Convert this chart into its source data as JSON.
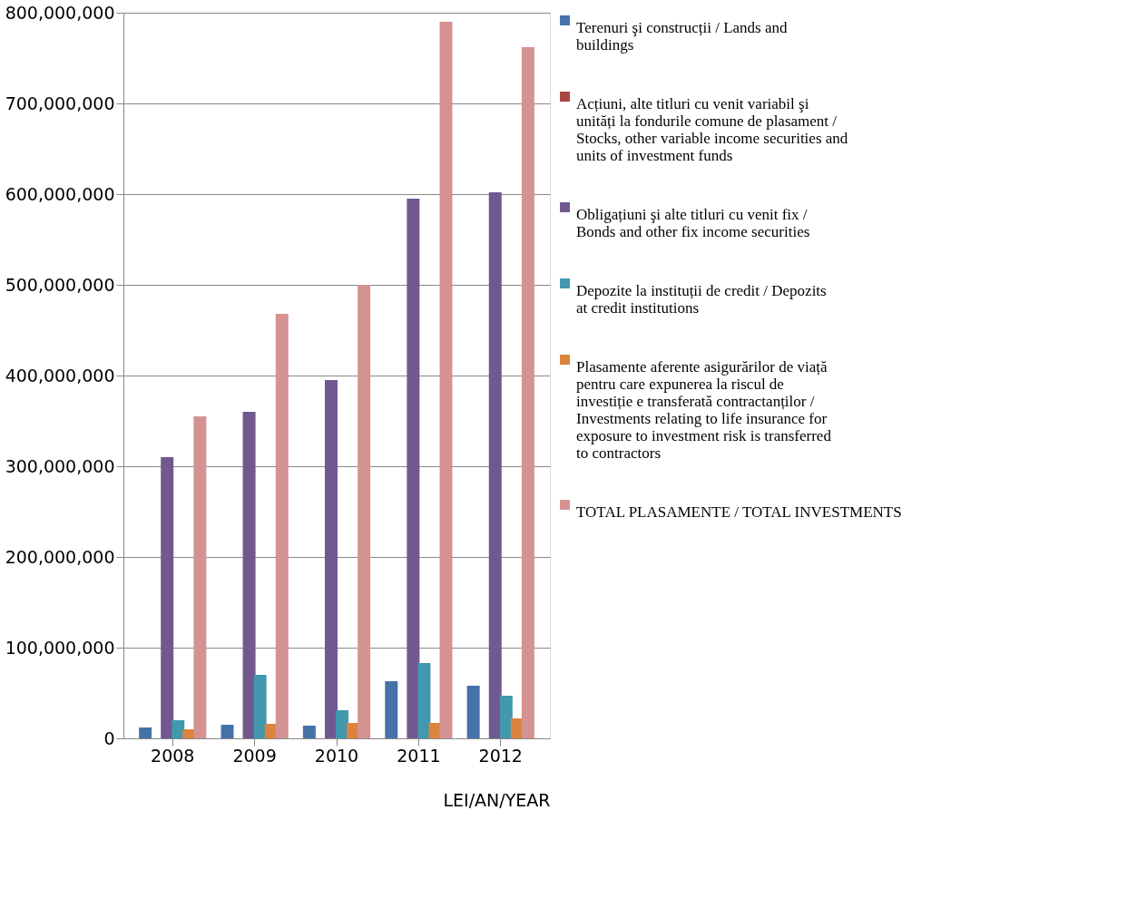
{
  "chart_data": {
    "type": "bar",
    "xlabel": "LEI/AN/YEAR",
    "categories": [
      "2008",
      "2009",
      "2010",
      "2011",
      "2012"
    ],
    "series": [
      {
        "name": "Terenuri şi construcții / Lands  and buildings",
        "color": "#4572a7",
        "values": [
          12000000,
          15000000,
          14000000,
          63000000,
          58000000
        ]
      },
      {
        "name": "Acțiuni, alte titluri cu venit variabil şi unități la fondurile comune de plasament / Stocks, other variable income securities and units of investment funds",
        "color": "#aa4643",
        "values": [
          null,
          null,
          null,
          null,
          null
        ]
      },
      {
        "name": "Obligațiuni şi alte titluri cu venit fix / Bonds and other fix income securities",
        "color": "#71588f",
        "values": [
          310000000,
          360000000,
          395000000,
          595000000,
          602000000
        ]
      },
      {
        "name": "Depozite la instituții de credit / Depozits at credit institutions",
        "color": "#4198af",
        "values": [
          20000000,
          70000000,
          31000000,
          83000000,
          47000000
        ]
      },
      {
        "name": "Plasamente aferente asigurărilor de viață pentru care expunerea la riscul de investiție e transferată contractanților / Investments relating to life insurance for exposure to investment risk is transferred to contractors",
        "color": "#db843d",
        "values": [
          10000000,
          16000000,
          17000000,
          17000000,
          22000000
        ]
      },
      {
        "name": "TOTAL PLASAMENTE / TOTAL INVESTMENTS",
        "color": "#d49392",
        "values": [
          355000000,
          468000000,
          500000000,
          790000000,
          762000000
        ]
      }
    ],
    "ylim": [
      0,
      800000000
    ],
    "yticks": [
      0,
      {
        "value": 100000000,
        "label": "100,000,000"
      },
      {
        "value": 200000000,
        "label": "200,000,000"
      },
      {
        "value": 300000000,
        "label": "300,000,000"
      },
      {
        "value": 400000000,
        "label": "400,000,000"
      },
      {
        "value": 500000000,
        "label": "500,000,000"
      },
      {
        "value": 600000000,
        "label": "600,000,000"
      },
      {
        "value": 700000000,
        "label": "700,000,000"
      },
      {
        "value": 800000000,
        "label": "800,000,000"
      }
    ],
    "grid": "y",
    "legend": "right"
  }
}
